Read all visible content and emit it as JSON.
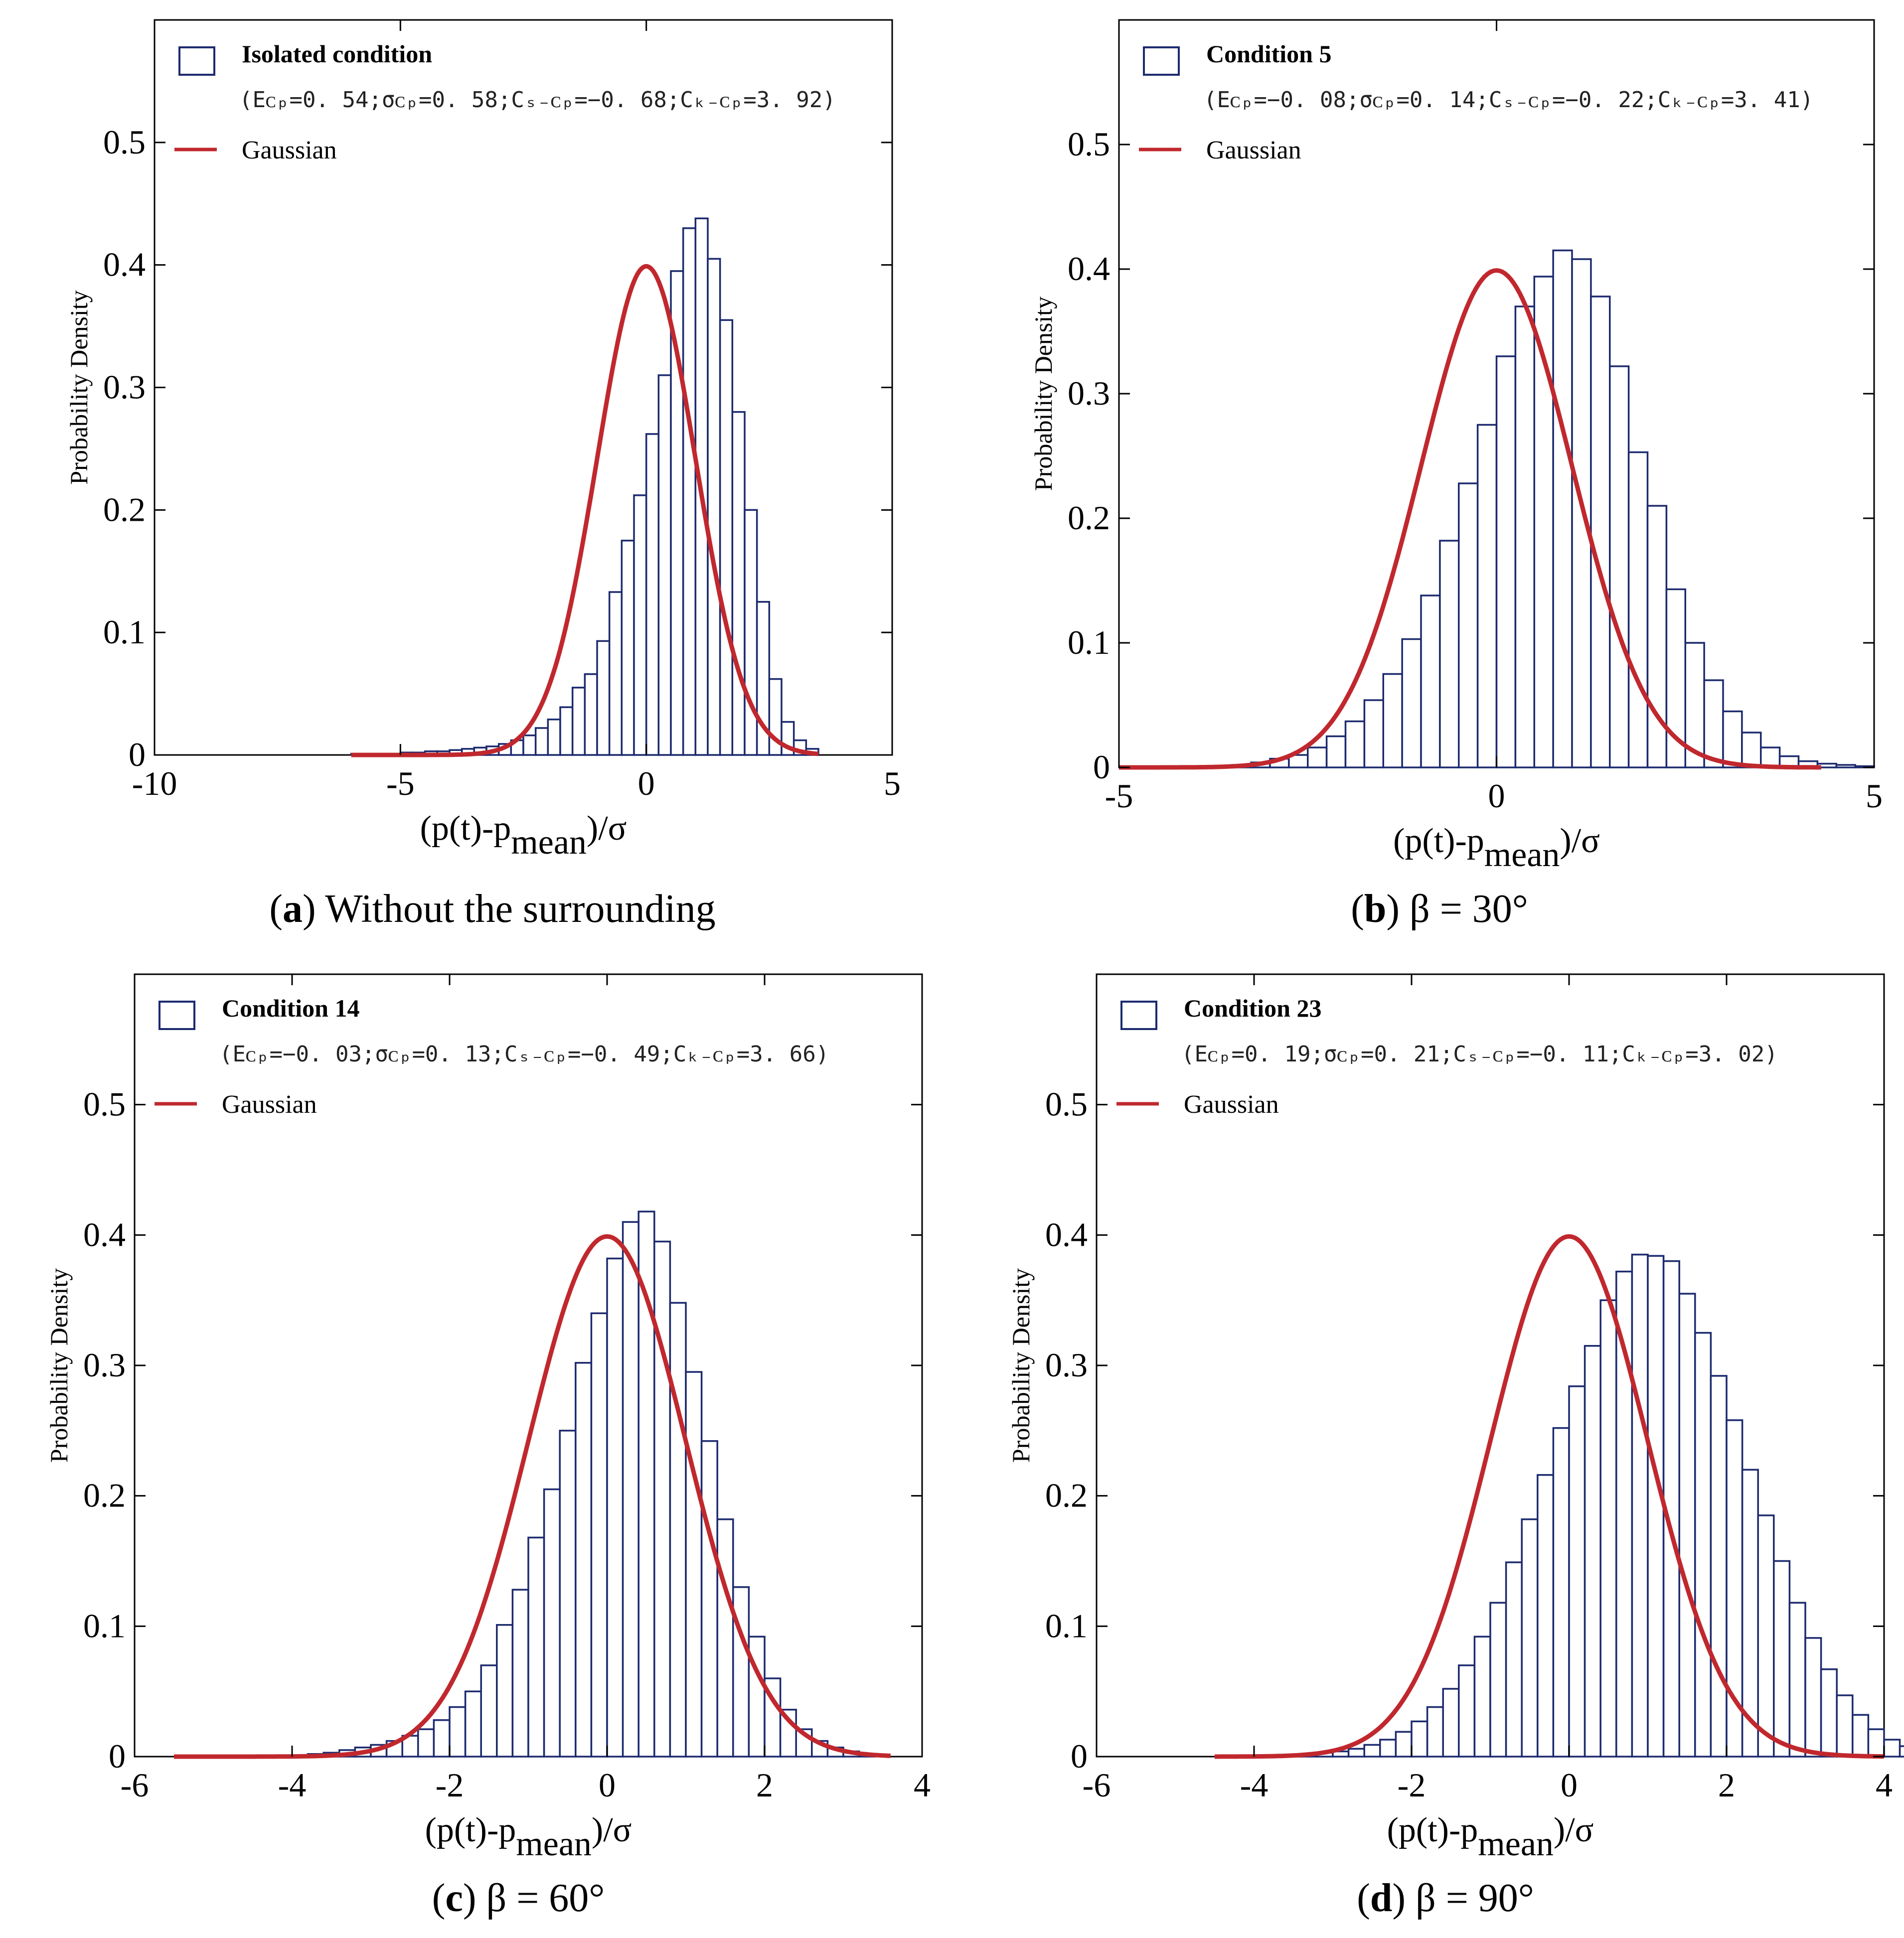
{
  "colors": {
    "bar": "#1c2a6e",
    "gaussian": "#c0282e",
    "frame": "#000000"
  },
  "common": {
    "ylabel": "Probability Density",
    "xlabel_main": "(p(t)-p",
    "xlabel_sub": "mean",
    "xlabel_tail": ")/σ",
    "gaussian_label": "Gaussian"
  },
  "chart_data": [
    {
      "type": "bar",
      "legend_title": "Isolated condition",
      "legend_stats": "(Eᴄₚ=0. 54;σᴄₚ=0. 58;Cₛ₋ᴄₚ=−0. 68;Cₖ₋ᴄₚ=3. 92)",
      "caption_letter": "a",
      "caption_rest": " Without the surrounding",
      "xlim": [
        -10,
        5
      ],
      "ylim": [
        0,
        0.6
      ],
      "xticks": [
        -10,
        -5,
        0,
        5
      ],
      "yticks": [
        0,
        0.1,
        0.2,
        0.3,
        0.4,
        0.5
      ],
      "bin_start": -6.0,
      "bin_width": 0.25,
      "values": [
        0.001,
        0.001,
        0.001,
        0.001,
        0.002,
        0.002,
        0.003,
        0.003,
        0.004,
        0.005,
        0.006,
        0.007,
        0.009,
        0.012,
        0.016,
        0.022,
        0.029,
        0.039,
        0.055,
        0.066,
        0.093,
        0.133,
        0.175,
        0.212,
        0.262,
        0.31,
        0.395,
        0.43,
        0.438,
        0.405,
        0.355,
        0.28,
        0.2,
        0.125,
        0.062,
        0.027,
        0.012,
        0.005
      ],
      "gaussian_range": [
        -6,
        3.5
      ]
    },
    {
      "type": "bar",
      "legend_title": "Condition 5",
      "legend_stats": "(Eᴄₚ=−0. 08;σᴄₚ=0. 14;Cₛ₋ᴄₚ=−0. 22;Cₖ₋ᴄₚ=3. 41)",
      "caption_letter": "b",
      "caption_rest": " β = 30°",
      "xlim": [
        -5,
        5
      ],
      "ylim": [
        0,
        0.6
      ],
      "xticks": [
        -5,
        0,
        5
      ],
      "yticks": [
        0,
        0.1,
        0.2,
        0.3,
        0.4,
        0.5
      ],
      "bin_start": -3.5,
      "bin_width": 0.25,
      "values": [
        0.002,
        0.004,
        0.007,
        0.01,
        0.016,
        0.025,
        0.037,
        0.054,
        0.075,
        0.103,
        0.138,
        0.182,
        0.228,
        0.275,
        0.33,
        0.37,
        0.394,
        0.415,
        0.408,
        0.378,
        0.322,
        0.253,
        0.21,
        0.143,
        0.1,
        0.07,
        0.045,
        0.028,
        0.016,
        0.009,
        0.005,
        0.003,
        0.002,
        0.001
      ],
      "gaussian_range": [
        -5,
        4.3
      ]
    },
    {
      "type": "bar",
      "legend_title": "Condition 14",
      "legend_stats": "(Eᴄₚ=−0. 03;σᴄₚ=0. 13;Cₛ₋ᴄₚ=−0. 49;Cₖ₋ᴄₚ=3. 66)",
      "caption_letter": "c",
      "caption_rest": " β = 60°",
      "xlim": [
        -6,
        4
      ],
      "ylim": [
        0,
        0.6
      ],
      "xticks": [
        -6,
        -4,
        -2,
        0,
        2,
        4
      ],
      "yticks": [
        0,
        0.1,
        0.2,
        0.3,
        0.4,
        0.5
      ],
      "bin_start": -4.0,
      "bin_width": 0.2,
      "values": [
        0.001,
        0.002,
        0.003,
        0.005,
        0.007,
        0.009,
        0.012,
        0.016,
        0.021,
        0.028,
        0.038,
        0.05,
        0.07,
        0.101,
        0.128,
        0.168,
        0.205,
        0.25,
        0.302,
        0.34,
        0.382,
        0.41,
        0.418,
        0.395,
        0.348,
        0.295,
        0.242,
        0.182,
        0.13,
        0.092,
        0.06,
        0.036,
        0.021,
        0.012,
        0.007,
        0.004,
        0.002
      ],
      "gaussian_range": [
        -5.5,
        3.6
      ]
    },
    {
      "type": "bar",
      "legend_title": "Condition 23",
      "legend_stats": "(Eᴄₚ=0. 19;σᴄₚ=0. 21;Cₛ₋ᴄₚ=−0. 11;Cₖ₋ᴄₚ=3. 02)",
      "caption_letter": "d",
      "caption_rest": " β = 90°",
      "xlim": [
        -6,
        4
      ],
      "ylim": [
        0,
        0.6
      ],
      "xticks": [
        -6,
        -4,
        -2,
        0,
        2,
        4
      ],
      "yticks": [
        0,
        0.1,
        0.2,
        0.3,
        0.4,
        0.5
      ],
      "bin_start": -3.6,
      "bin_width": 0.2,
      "values": [
        0.001,
        0.002,
        0.003,
        0.004,
        0.006,
        0.009,
        0.013,
        0.019,
        0.027,
        0.038,
        0.052,
        0.07,
        0.092,
        0.118,
        0.149,
        0.182,
        0.216,
        0.252,
        0.284,
        0.315,
        0.35,
        0.372,
        0.385,
        0.384,
        0.38,
        0.355,
        0.325,
        0.292,
        0.258,
        0.22,
        0.185,
        0.15,
        0.118,
        0.091,
        0.067,
        0.047,
        0.032,
        0.021,
        0.013,
        0.008,
        0.004,
        0.002
      ],
      "gaussian_range": [
        -4.5,
        4
      ]
    }
  ]
}
